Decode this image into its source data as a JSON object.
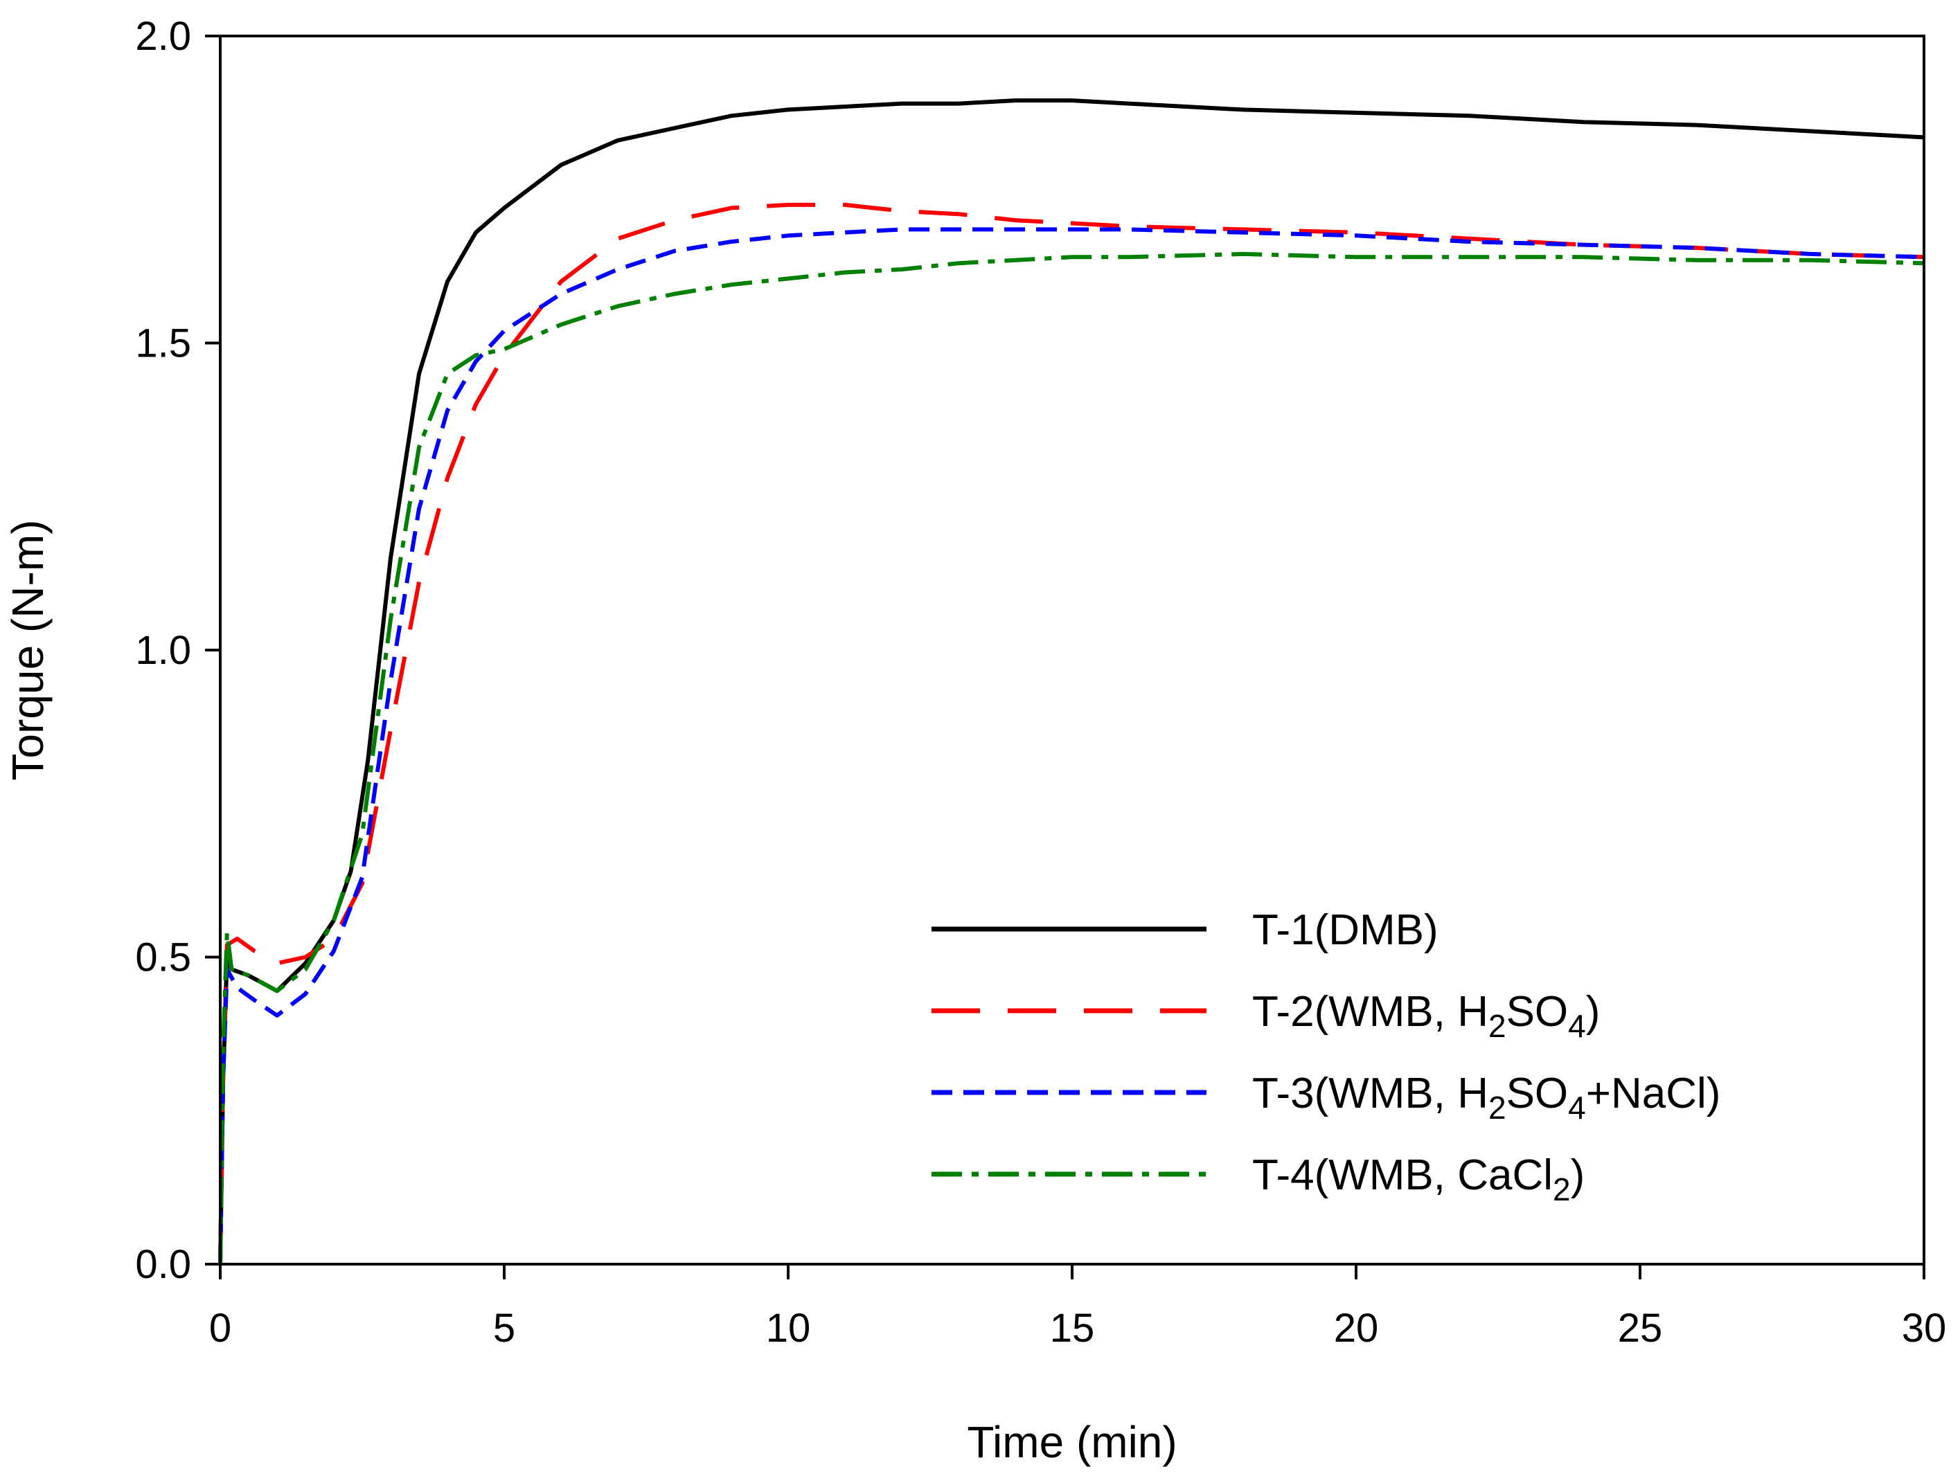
{
  "chart_data": {
    "type": "line",
    "title": "",
    "xlabel": "Time (min)",
    "ylabel": "Torque (N-m)",
    "xlim": [
      0,
      30
    ],
    "ylim": [
      0,
      2.0
    ],
    "xticks": [
      0,
      5,
      10,
      15,
      20,
      25,
      30
    ],
    "xtick_labels": [
      "0",
      "5",
      "10",
      "15",
      "20",
      "25",
      "30"
    ],
    "yticks": [
      0,
      0.5,
      1.0,
      1.5,
      2.0
    ],
    "ytick_labels": [
      "0.0",
      "0.5",
      "1.0",
      "1.5",
      "2.0"
    ],
    "grid": false,
    "legend_position": "bottom-right",
    "series": [
      {
        "name": "T-1(DMB)",
        "legend_main": "T-1(DMB",
        "legend_parts": [
          {
            "text": "T-1(DMB)",
            "sub": false
          }
        ],
        "color": "#000000",
        "dash": "none",
        "points": [
          [
            0,
            0
          ],
          [
            0.05,
            0.3
          ],
          [
            0.12,
            0.5
          ],
          [
            0.2,
            0.48
          ],
          [
            0.5,
            0.47
          ],
          [
            1,
            0.445
          ],
          [
            1.5,
            0.49
          ],
          [
            2,
            0.56
          ],
          [
            2.3,
            0.64
          ],
          [
            2.6,
            0.82
          ],
          [
            3,
            1.15
          ],
          [
            3.5,
            1.45
          ],
          [
            4,
            1.6
          ],
          [
            4.5,
            1.68
          ],
          [
            5,
            1.72
          ],
          [
            6,
            1.79
          ],
          [
            7,
            1.83
          ],
          [
            8,
            1.85
          ],
          [
            9,
            1.87
          ],
          [
            10,
            1.88
          ],
          [
            11,
            1.885
          ],
          [
            12,
            1.89
          ],
          [
            13,
            1.89
          ],
          [
            14,
            1.895
          ],
          [
            15,
            1.895
          ],
          [
            16,
            1.89
          ],
          [
            17,
            1.885
          ],
          [
            18,
            1.88
          ],
          [
            20,
            1.875
          ],
          [
            22,
            1.87
          ],
          [
            24,
            1.86
          ],
          [
            26,
            1.855
          ],
          [
            28,
            1.845
          ],
          [
            30,
            1.835
          ]
        ]
      },
      {
        "name": "T-2(WMB, H2SO4)",
        "legend_parts": [
          {
            "text": "T-2(WMB, H",
            "sub": false
          },
          {
            "text": "2",
            "sub": true
          },
          {
            "text": "SO",
            "sub": false
          },
          {
            "text": "4",
            "sub": true
          },
          {
            "text": ")",
            "sub": false
          }
        ],
        "color": "#ff0000",
        "dash": "70,40",
        "points": [
          [
            0,
            0
          ],
          [
            0.05,
            0.3
          ],
          [
            0.12,
            0.52
          ],
          [
            0.3,
            0.53
          ],
          [
            0.6,
            0.51
          ],
          [
            1,
            0.49
          ],
          [
            1.5,
            0.5
          ],
          [
            2,
            0.53
          ],
          [
            2.5,
            0.62
          ],
          [
            3,
            0.87
          ],
          [
            3.5,
            1.11
          ],
          [
            4,
            1.28
          ],
          [
            4.5,
            1.4
          ],
          [
            5,
            1.48
          ],
          [
            6,
            1.6
          ],
          [
            7,
            1.67
          ],
          [
            8,
            1.7
          ],
          [
            9,
            1.72
          ],
          [
            10,
            1.725
          ],
          [
            11,
            1.725
          ],
          [
            12,
            1.715
          ],
          [
            13,
            1.71
          ],
          [
            14,
            1.7
          ],
          [
            15,
            1.695
          ],
          [
            16,
            1.69
          ],
          [
            18,
            1.685
          ],
          [
            20,
            1.68
          ],
          [
            22,
            1.67
          ],
          [
            24,
            1.66
          ],
          [
            26,
            1.655
          ],
          [
            28,
            1.645
          ],
          [
            30,
            1.64
          ]
        ]
      },
      {
        "name": "T-3(WMB, H2SO4+NaCl)",
        "legend_parts": [
          {
            "text": "T-3(WMB, H",
            "sub": false
          },
          {
            "text": "2",
            "sub": true
          },
          {
            "text": "SO",
            "sub": false
          },
          {
            "text": "4",
            "sub": true
          },
          {
            "text": "+NaCl)",
            "sub": false
          }
        ],
        "color": "#0000ff",
        "dash": "30,16",
        "points": [
          [
            0,
            0
          ],
          [
            0.05,
            0.3
          ],
          [
            0.12,
            0.48
          ],
          [
            0.3,
            0.45
          ],
          [
            0.6,
            0.43
          ],
          [
            1,
            0.405
          ],
          [
            1.5,
            0.44
          ],
          [
            2,
            0.51
          ],
          [
            2.5,
            0.63
          ],
          [
            3,
            0.95
          ],
          [
            3.5,
            1.23
          ],
          [
            4,
            1.39
          ],
          [
            4.5,
            1.47
          ],
          [
            5,
            1.52
          ],
          [
            6,
            1.58
          ],
          [
            7,
            1.62
          ],
          [
            8,
            1.65
          ],
          [
            9,
            1.665
          ],
          [
            10,
            1.675
          ],
          [
            11,
            1.68
          ],
          [
            12,
            1.685
          ],
          [
            13,
            1.685
          ],
          [
            14,
            1.685
          ],
          [
            15,
            1.685
          ],
          [
            16,
            1.685
          ],
          [
            18,
            1.68
          ],
          [
            20,
            1.675
          ],
          [
            22,
            1.665
          ],
          [
            24,
            1.66
          ],
          [
            26,
            1.655
          ],
          [
            28,
            1.645
          ],
          [
            30,
            1.64
          ]
        ]
      },
      {
        "name": "T-4(WMB, CaCl2)",
        "legend_parts": [
          {
            "text": "T-4(WMB, CaCl",
            "sub": false
          },
          {
            "text": "2",
            "sub": true
          },
          {
            "text": ")",
            "sub": false
          }
        ],
        "color": "#008000",
        "dash": "44,14,10,14",
        "points": [
          [
            0,
            0
          ],
          [
            0.05,
            0.35
          ],
          [
            0.12,
            0.54
          ],
          [
            0.2,
            0.48
          ],
          [
            0.5,
            0.47
          ],
          [
            1,
            0.445
          ],
          [
            1.5,
            0.48
          ],
          [
            2,
            0.56
          ],
          [
            2.5,
            0.7
          ],
          [
            3,
            1.05
          ],
          [
            3.5,
            1.33
          ],
          [
            4,
            1.45
          ],
          [
            4.5,
            1.48
          ],
          [
            5,
            1.49
          ],
          [
            6,
            1.53
          ],
          [
            7,
            1.56
          ],
          [
            8,
            1.58
          ],
          [
            9,
            1.595
          ],
          [
            10,
            1.605
          ],
          [
            11,
            1.615
          ],
          [
            12,
            1.62
          ],
          [
            13,
            1.63
          ],
          [
            14,
            1.635
          ],
          [
            15,
            1.64
          ],
          [
            16,
            1.64
          ],
          [
            18,
            1.645
          ],
          [
            20,
            1.64
          ],
          [
            22,
            1.64
          ],
          [
            24,
            1.64
          ],
          [
            26,
            1.635
          ],
          [
            28,
            1.635
          ],
          [
            30,
            1.63
          ]
        ]
      }
    ]
  }
}
